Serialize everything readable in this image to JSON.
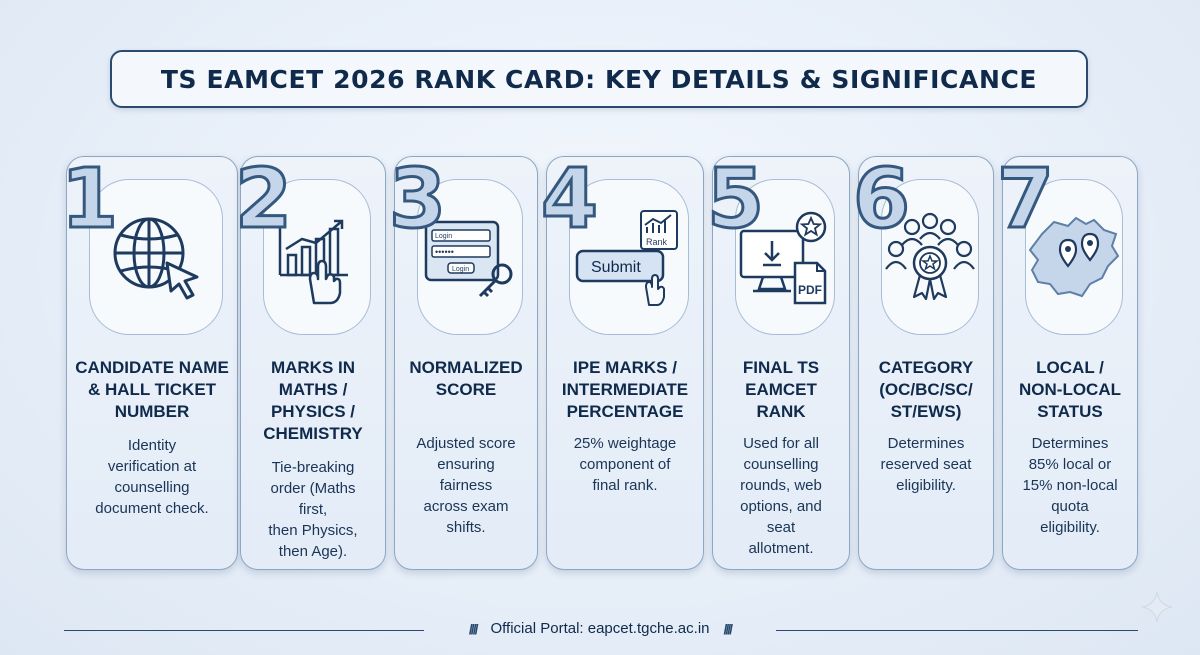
{
  "title": "TS EAMCET 2026 RANK CARD: KEY DETAILS & SIGNIFICANCE",
  "cards": [
    {
      "number": "1",
      "icon": "globe-cursor-icon",
      "label": "CANDIDATE NAME\n& HALL TICKET\nNUMBER",
      "desc": "Identity\nverification at\ncounselling\ndocument check."
    },
    {
      "number": "2",
      "icon": "chart-hand-icon",
      "label": "MARKS IN\nMATHS /\nPHYSICS /\nCHEMISTRY",
      "desc": "Tie-breaking\norder (Maths\nfirst,\nthen Physics,\nthen Age)."
    },
    {
      "number": "3",
      "icon": "login-key-icon",
      "label": "NORMALIZED\nSCORE",
      "desc": "Adjusted score\nensuring\nfairness\nacross exam\nshifts."
    },
    {
      "number": "4",
      "icon": "submit-rank-icon",
      "label": "IPE MARKS /\nINTERMEDIATE\nPERCENTAGE",
      "desc": "25% weightage\ncomponent of\nfinal rank."
    },
    {
      "number": "5",
      "icon": "download-pdf-icon",
      "label": "FINAL TS\nEAMCET\nRANK",
      "desc": "Used for all\ncounselling\nrounds, web\noptions, and\nseat\nallotment."
    },
    {
      "number": "6",
      "icon": "people-badge-icon",
      "label": "CATEGORY\n(OC/BC/SC/\nST/EWS)",
      "desc": "Determines\nreserved seat\neligibility."
    },
    {
      "number": "7",
      "icon": "map-pin-icon",
      "label": "LOCAL /\nNON-LOCAL\nSTATUS",
      "desc": "Determines\n85% local or\n15% non-local\nquota\neligibility."
    }
  ],
  "icon_text": {
    "login": "Login",
    "login_btn": "Login",
    "password": "••••••",
    "submit": "Submit",
    "rank": "Rank",
    "pdf": "PDF"
  },
  "footer": "Official Portal: eapcet.tgche.ac.in"
}
